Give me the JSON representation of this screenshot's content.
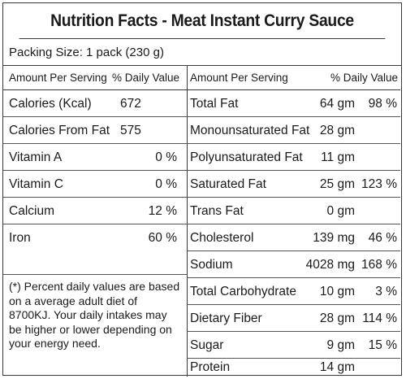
{
  "title": "Nutrition Facts - Meat Instant Curry Sauce",
  "packing_size": "Packing Size: 1 pack (230 g)",
  "left_header": {
    "col1": "Amount Per Serving",
    "col2": "% Daily Value"
  },
  "right_header": {
    "col1": "Amount Per Serving",
    "col2": "% Daily Value"
  },
  "left_rows": [
    {
      "label": "Calories (Kcal)",
      "value": "672",
      "dv": ""
    },
    {
      "label": "Calories From Fat",
      "value": "575",
      "dv": ""
    },
    {
      "label": "Vitamin A",
      "value": "",
      "dv": "0 %"
    },
    {
      "label": "Vitamin C",
      "value": "",
      "dv": "0 %"
    },
    {
      "label": "Calcium",
      "value": "",
      "dv": "12 %"
    },
    {
      "label": "Iron",
      "value": "",
      "dv": "60 %"
    }
  ],
  "right_rows": [
    {
      "label": "Total Fat",
      "amount": "64 gm",
      "dv": "98 %"
    },
    {
      "label": "Monounsaturated Fat",
      "amount": "28 gm",
      "dv": ""
    },
    {
      "label": "Polyunsaturated Fat",
      "amount": "11 gm",
      "dv": ""
    },
    {
      "label": "Saturated Fat",
      "amount": "25 gm",
      "dv": "123 %"
    },
    {
      "label": "Trans Fat",
      "amount": "0 gm",
      "dv": ""
    },
    {
      "label": "Cholesterol",
      "amount": "139 mg",
      "dv": "46 %"
    },
    {
      "label": "Sodium",
      "amount": "4028 mg",
      "dv": "168 %"
    },
    {
      "label": "Total Carbohydrate",
      "amount": "10 gm",
      "dv": "3 %"
    },
    {
      "label": "Dietary Fiber",
      "amount": "28 gm",
      "dv": "114 %"
    },
    {
      "label": "Sugar",
      "amount": "9 gm",
      "dv": "15 %"
    },
    {
      "label": "Protein",
      "amount": "14 gm",
      "dv": ""
    }
  ],
  "footnote": "(*) Percent daily values are based on a average adult diet of 8700KJ. Your daily intakes may be higher or lower depending on your energy need."
}
